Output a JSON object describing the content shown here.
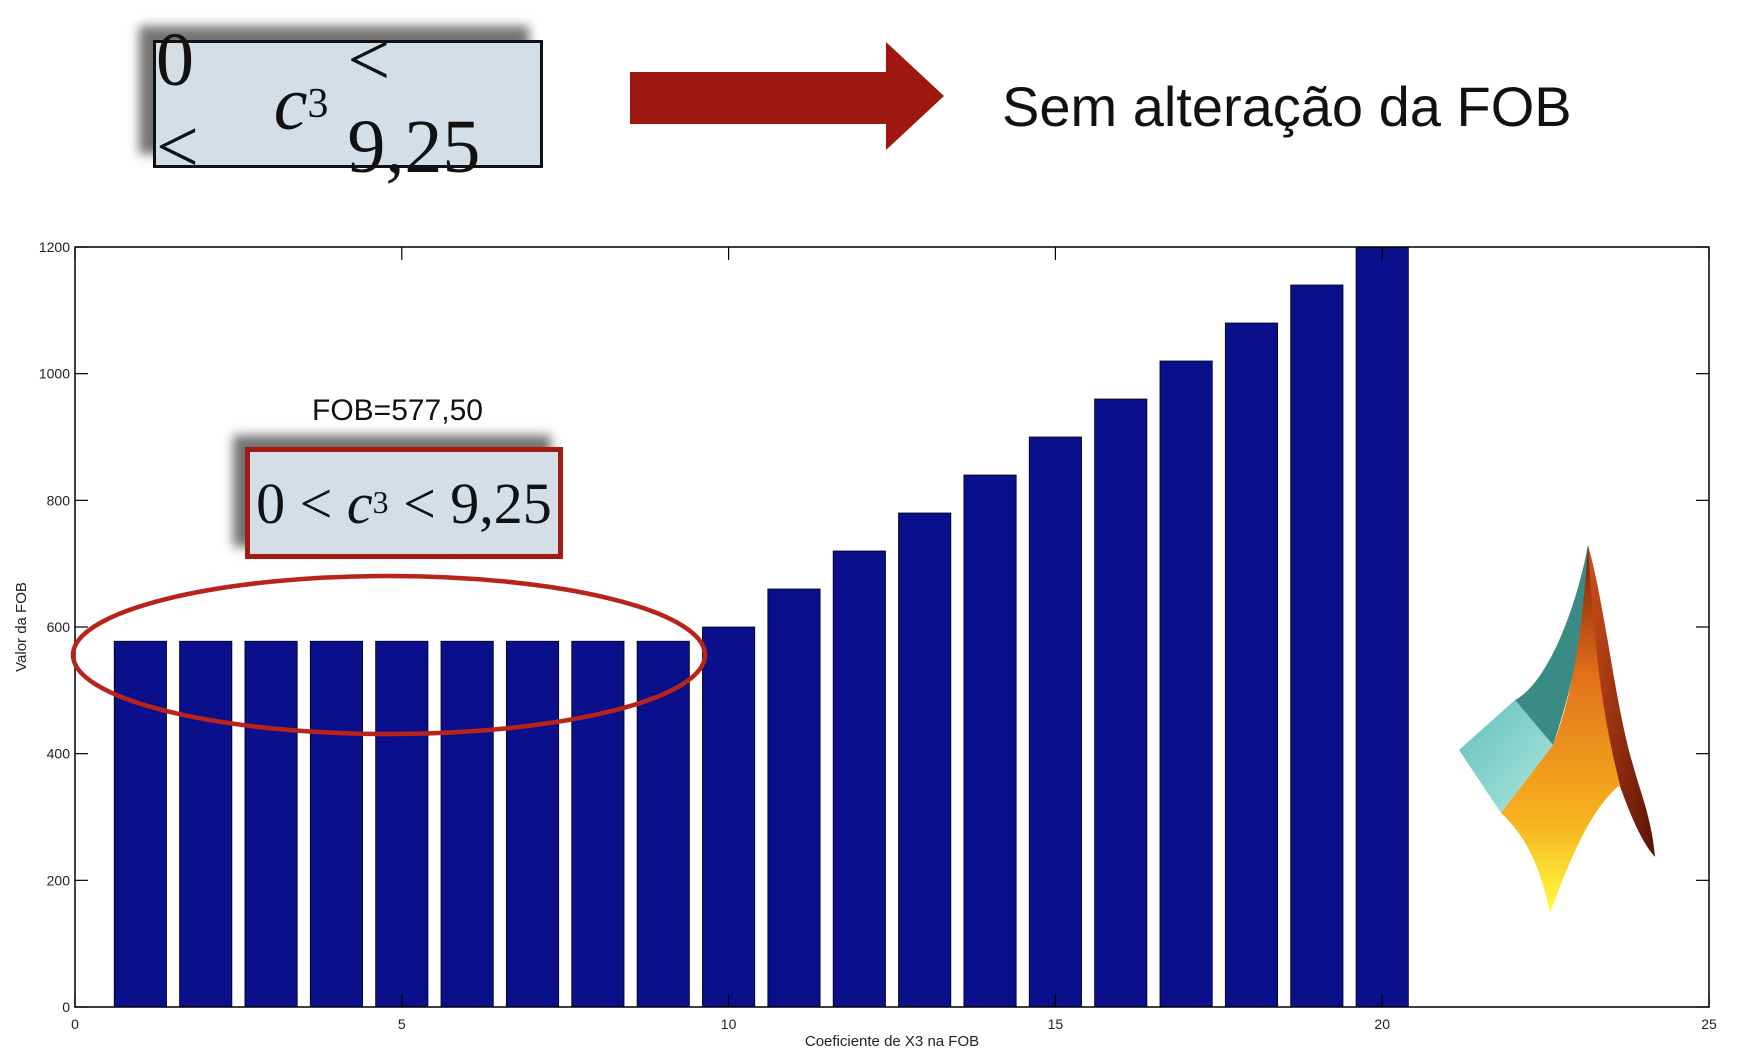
{
  "header": {
    "condition": {
      "left": "0 <",
      "var": "c",
      "sub": "3",
      "right": "< 9,25"
    },
    "result_label": "Sem alteração da FOB"
  },
  "annotation": {
    "fob_label": "FOB=577,50",
    "condition": {
      "left": "0 <",
      "var": "c",
      "sub": "3",
      "right": "< 9,25"
    }
  },
  "colors": {
    "bar": "#0a0f8c",
    "arrow": "#9e1710",
    "highlight": "#b8241a",
    "box_fill": "#d3dee6"
  },
  "chart_data": {
    "type": "bar",
    "x": [
      1,
      2,
      3,
      4,
      5,
      6,
      7,
      8,
      9,
      10,
      11,
      12,
      13,
      14,
      15,
      16,
      17,
      18,
      19,
      20
    ],
    "values": [
      577.5,
      577.5,
      577.5,
      577.5,
      577.5,
      577.5,
      577.5,
      577.5,
      577.5,
      600,
      660,
      720,
      780,
      840,
      900,
      960,
      1020,
      1080,
      1140,
      1200
    ],
    "xlabel": "Coeficiente de X3 na FOB",
    "ylabel": "Valor da FOB",
    "xlim": [
      0,
      25
    ],
    "ylim": [
      0,
      1200
    ],
    "xticks": [
      0,
      5,
      10,
      15,
      20,
      25
    ],
    "yticks": [
      0,
      200,
      400,
      600,
      800,
      1000,
      1200
    ],
    "grid": false
  },
  "logo": {
    "icon": "matlab-membrane-logo-icon"
  }
}
